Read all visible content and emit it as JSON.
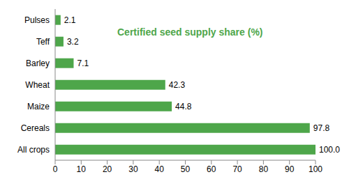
{
  "chart_data": {
    "type": "bar",
    "title": "Certified seed supply share (%)",
    "orientation": "horizontal",
    "categories": [
      "Pulses",
      "Teff",
      "Barley",
      "Wheat",
      "Maize",
      "Cereals",
      "All crops"
    ],
    "values": [
      2.1,
      3.2,
      7.1,
      42.3,
      44.8,
      97.8,
      100
    ],
    "value_labels": [
      "2.1",
      "3.2",
      "7.1",
      "42.3",
      "44.8",
      "97.8",
      "100.0"
    ],
    "data_labels": true,
    "color": "#4ea64a",
    "xlim": [
      0,
      100
    ],
    "xticks": [
      0,
      10,
      20,
      30,
      40,
      50,
      60,
      70,
      80,
      90,
      100
    ],
    "grid": false
  }
}
